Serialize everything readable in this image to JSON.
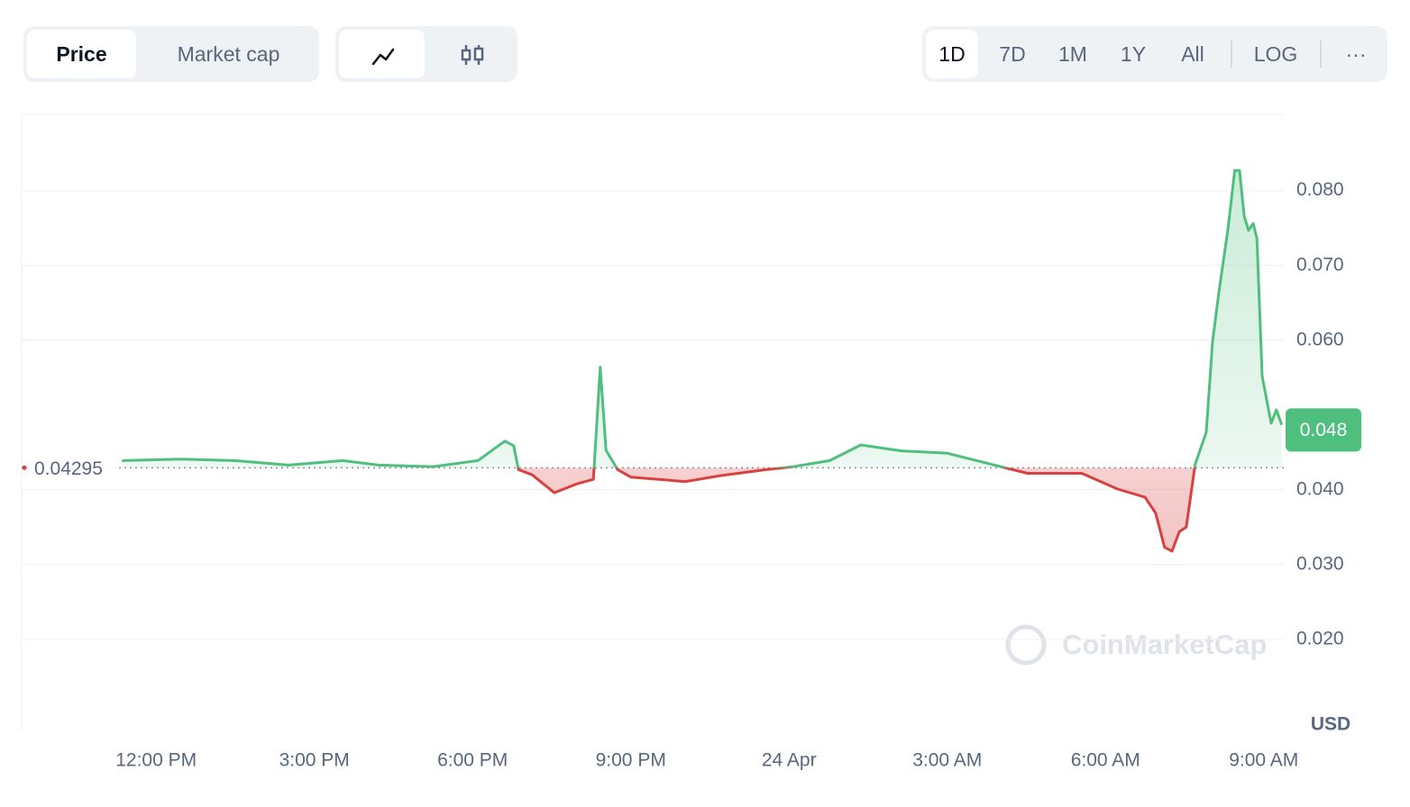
{
  "ui": {
    "tabs": [
      "Price",
      "Market cap"
    ],
    "ranges": [
      "1D",
      "7D",
      "1M",
      "1Y",
      "All"
    ],
    "log": "LOG",
    "more": "···"
  },
  "chart_data": {
    "type": "line",
    "x": [
      11.35,
      12.46,
      13.49,
      14.51,
      15.54,
      16.22,
      17.25,
      18.1,
      18.61,
      18.78,
      18.87,
      19.13,
      19.55,
      19.98,
      20.29,
      20.42,
      20.53,
      20.75,
      21.0,
      21.69,
      22.03,
      22.71,
      23.57,
      24.08,
      24.77,
      25.36,
      26.13,
      26.99,
      27.84,
      28.52,
      29.55,
      30.23,
      30.75,
      30.95,
      31.12,
      31.26,
      31.4,
      31.53,
      31.7,
      31.91,
      32.03,
      32.15,
      32.32,
      32.45,
      32.54,
      32.63,
      32.71,
      32.8,
      32.87,
      32.97,
      33.14,
      33.24,
      33.34
    ],
    "values": [
      0.0439,
      0.0441,
      0.0439,
      0.0433,
      0.0439,
      0.0433,
      0.0431,
      0.0439,
      0.0465,
      0.0459,
      0.0427,
      0.042,
      0.0396,
      0.0408,
      0.0414,
      0.0564,
      0.0453,
      0.0427,
      0.0417,
      0.0413,
      0.0411,
      0.0419,
      0.0427,
      0.0431,
      0.0439,
      0.046,
      0.0452,
      0.0449,
      0.0434,
      0.0422,
      0.0422,
      0.0401,
      0.039,
      0.0369,
      0.0323,
      0.0318,
      0.0344,
      0.035,
      0.0434,
      0.0477,
      0.0598,
      0.0664,
      0.0748,
      0.0827,
      0.0827,
      0.0766,
      0.0747,
      0.0756,
      0.0736,
      0.0552,
      0.0489,
      0.0507,
      0.0487
    ],
    "color_up": "#4fbf7e",
    "color_down": "#d9403f",
    "baseline": 0.04295,
    "current": 0.048,
    "xlim": [
      9.45,
      33.38
    ],
    "ylim": [
      0.0077,
      0.0902
    ],
    "xticks": [
      {
        "value": 12,
        "label": "12:00 PM"
      },
      {
        "value": 15,
        "label": "3:00 PM"
      },
      {
        "value": 18,
        "label": "6:00 PM"
      },
      {
        "value": 21,
        "label": "9:00 PM"
      },
      {
        "value": 24,
        "label": "24 Apr"
      },
      {
        "value": 27,
        "label": "3:00 AM"
      },
      {
        "value": 30,
        "label": "6:00 AM"
      },
      {
        "value": 33,
        "label": "9:00 AM"
      }
    ],
    "yticks": [
      {
        "value": 0.02,
        "label": "0.020"
      },
      {
        "value": 0.03,
        "label": "0.030"
      },
      {
        "value": 0.04,
        "label": "0.040"
      },
      {
        "value": 0.06,
        "label": "0.060"
      },
      {
        "value": 0.07,
        "label": "0.070"
      },
      {
        "value": 0.08,
        "label": "0.080"
      }
    ],
    "grid": true,
    "unit_label": "USD",
    "watermark": "CoinMarketCap"
  }
}
